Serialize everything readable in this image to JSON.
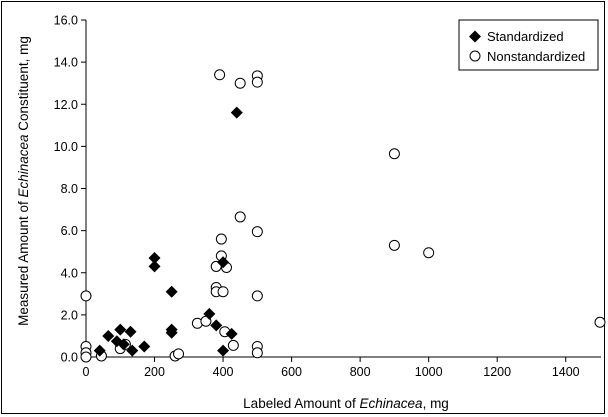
{
  "chart_data": {
    "type": "scatter",
    "xlabel": {
      "prefix": "Labeled Amount of ",
      "italic": "Echinacea",
      "suffix": ", mg"
    },
    "ylabel": {
      "prefix": "Measured Amount of ",
      "italic": "Echinacea",
      "suffix": " Constituent, mg"
    },
    "xlim": [
      0,
      1500
    ],
    "ylim": [
      0,
      16
    ],
    "xticks": [
      "0",
      "200",
      "400",
      "600",
      "800",
      "1000",
      "1200",
      "1400"
    ],
    "xtick_values": [
      0,
      200,
      400,
      600,
      800,
      1000,
      1200,
      1400
    ],
    "yticks": [
      "0.0",
      "2.0",
      "4.0",
      "6.0",
      "8.0",
      "10.0",
      "12.0",
      "14.0",
      "16.0"
    ],
    "ytick_values": [
      0,
      2,
      4,
      6,
      8,
      10,
      12,
      14,
      16
    ],
    "legend_position": "top-right",
    "series": [
      {
        "name": "Standardized",
        "marker": "diamond-filled",
        "points": [
          [
            40,
            0.3
          ],
          [
            65,
            1.0
          ],
          [
            90,
            0.75
          ],
          [
            100,
            1.3
          ],
          [
            110,
            0.6
          ],
          [
            130,
            1.2
          ],
          [
            135,
            0.3
          ],
          [
            170,
            0.5
          ],
          [
            200,
            4.7
          ],
          [
            200,
            4.3
          ],
          [
            250,
            3.1
          ],
          [
            250,
            1.3
          ],
          [
            250,
            1.15
          ],
          [
            360,
            2.05
          ],
          [
            380,
            1.5
          ],
          [
            400,
            0.3
          ],
          [
            400,
            4.5
          ],
          [
            425,
            1.1
          ],
          [
            440,
            11.6
          ]
        ]
      },
      {
        "name": "Nonstandardized",
        "marker": "circle-open",
        "points": [
          [
            0,
            2.9
          ],
          [
            0,
            0.5
          ],
          [
            0,
            0.2
          ],
          [
            0,
            0.0
          ],
          [
            45,
            0.05
          ],
          [
            100,
            0.4
          ],
          [
            115,
            0.6
          ],
          [
            260,
            0.05
          ],
          [
            270,
            0.15
          ],
          [
            325,
            1.6
          ],
          [
            350,
            1.7
          ],
          [
            380,
            4.3
          ],
          [
            380,
            3.3
          ],
          [
            380,
            3.1
          ],
          [
            390,
            13.4
          ],
          [
            395,
            5.6
          ],
          [
            395,
            4.8
          ],
          [
            400,
            3.1
          ],
          [
            405,
            1.2
          ],
          [
            410,
            4.25
          ],
          [
            430,
            0.55
          ],
          [
            450,
            6.65
          ],
          [
            450,
            13.0
          ],
          [
            500,
            13.35
          ],
          [
            500,
            13.05
          ],
          [
            500,
            5.95
          ],
          [
            500,
            2.9
          ],
          [
            500,
            0.5
          ],
          [
            500,
            0.2
          ],
          [
            900,
            9.65
          ],
          [
            900,
            5.3
          ],
          [
            1000,
            4.95
          ],
          [
            1500,
            1.65
          ]
        ]
      }
    ]
  }
}
